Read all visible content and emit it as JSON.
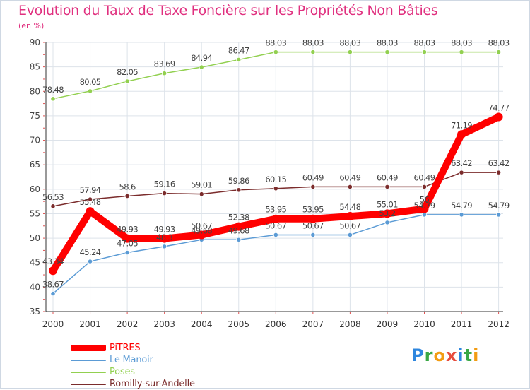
{
  "title": "Evolution du Taux de Taxe Foncière sur les Propriétés Non Bâties",
  "subtitle": "(en %)",
  "logo": {
    "text": "Proxiti",
    "letters": [
      "P",
      "r",
      "o",
      "x",
      "i",
      "t",
      "i"
    ],
    "colors": [
      "#2e86de",
      "#3aa845",
      "#f39c12",
      "#e74c3c",
      "#2e86de",
      "#3aa845",
      "#f39c12"
    ]
  },
  "chart_data": {
    "type": "line",
    "title": "Evolution du Taux de Taxe Foncière sur les Propriétés Non Bâties",
    "ylabel": "(en %)",
    "xlabel": "",
    "ylim": [
      35,
      90
    ],
    "yticks": [
      35,
      40,
      45,
      50,
      55,
      60,
      65,
      70,
      75,
      80,
      85,
      90
    ],
    "grid": true,
    "legend_position": "bottom-left",
    "x": [
      "2000",
      "2001",
      "2002",
      "2003",
      "2004",
      "2005",
      "2006",
      "2007",
      "2008",
      "2009",
      "2010",
      "2011",
      "2012"
    ],
    "series": [
      {
        "name": "Poses",
        "color": "#92d050",
        "values": [
          78.48,
          80.05,
          82.05,
          83.69,
          84.94,
          86.47,
          88.03,
          88.03,
          88.03,
          88.03,
          88.03,
          88.03,
          88.03
        ],
        "labels": [
          "78.48",
          "80.05",
          "82.05",
          "83.69",
          "84.94",
          "86.47",
          "88.03",
          "88.03",
          "88.03",
          "88.03",
          "88.03",
          "88.03",
          "88.03"
        ]
      },
      {
        "name": "Romilly-sur-Andelle",
        "color": "#7b2c2c",
        "values": [
          56.53,
          57.94,
          58.6,
          59.16,
          59.01,
          59.86,
          60.15,
          60.49,
          60.49,
          60.49,
          60.49,
          63.42,
          63.42
        ],
        "labels": [
          "56.53",
          "57.94",
          "58.6",
          "59.16",
          "59.01",
          "59.86",
          "60.15",
          "60.49",
          "60.49",
          "60.49",
          "60.49",
          "63.42",
          "63.42"
        ]
      },
      {
        "name": "Le Manoir",
        "color": "#5b9bd5",
        "values": [
          38.67,
          45.24,
          47.05,
          48.3,
          49.68,
          49.68,
          50.67,
          50.67,
          50.67,
          53.2,
          54.79,
          54.79,
          54.79
        ],
        "labels": [
          "38.67",
          "45.24",
          "47.05",
          "48.3",
          "49.68",
          "49.68",
          "50.67",
          "50.67",
          "50.67",
          "53.2",
          "54.79",
          "54.79",
          "54.79"
        ]
      },
      {
        "name": "PiTRES",
        "color": "#ff0000",
        "values": [
          43.34,
          55.48,
          49.93,
          49.93,
          50.67,
          52.38,
          53.95,
          53.95,
          54.48,
          55.01,
          56.0,
          71.19,
          74.77
        ],
        "labels": [
          "43.34",
          "55.48",
          "49.93",
          "49.93",
          "50.67",
          "52.38",
          "53.95",
          "53.95",
          "54.48",
          "55.01",
          "56",
          "71.19",
          "74.77"
        ]
      }
    ],
    "legend": [
      {
        "name": "PiTRES",
        "color": "#ff0000"
      },
      {
        "name": "Le Manoir",
        "color": "#5b9bd5"
      },
      {
        "name": "Poses",
        "color": "#92d050"
      },
      {
        "name": "Romilly-sur-Andelle",
        "color": "#7b2c2c"
      }
    ]
  }
}
